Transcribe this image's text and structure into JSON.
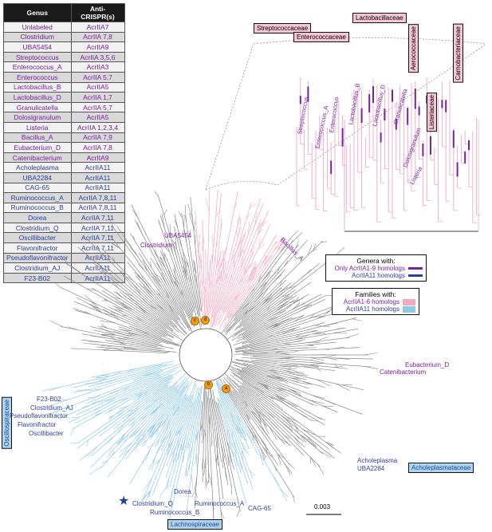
{
  "table": {
    "header_genus": "Genus",
    "header_acr": "Anti-CRISPR(s)",
    "rows": [
      {
        "genus": "Unlabeled",
        "acr": "AcrIIA7",
        "group": "purple"
      },
      {
        "genus": "Clostridium",
        "acr": "AcrIIA 7,8",
        "group": "purple"
      },
      {
        "genus": "UBA5454",
        "acr": "AcrIIA9",
        "group": "purple"
      },
      {
        "genus": "Streptococcus",
        "acr": "AcrIIA 3,5,6",
        "group": "purple"
      },
      {
        "genus": "Enterococcus_A",
        "acr": "AcrIIA3",
        "group": "purple"
      },
      {
        "genus": "Enterococcus",
        "acr": "AcrIIA 5,7",
        "group": "purple"
      },
      {
        "genus": "Lactobacillus_B",
        "acr": "AcrIIA5",
        "group": "purple"
      },
      {
        "genus": "Lactobacillus_D",
        "acr": "AcrIIA 1,7",
        "group": "purple"
      },
      {
        "genus": "Granulicatella",
        "acr": "AcrIIA 5,7",
        "group": "purple"
      },
      {
        "genus": "Dolosigranulum",
        "acr": "AcrIIA5",
        "group": "purple"
      },
      {
        "genus": "Listeria",
        "acr": "AcrIIA 1,2,3,4",
        "group": "purple"
      },
      {
        "genus": "Bacillus_A",
        "acr": "AcrIIA 7,9",
        "group": "purple"
      },
      {
        "genus": "Eubacterium_D",
        "acr": "AcrIIA 7,8",
        "group": "purple"
      },
      {
        "genus": "Catenibacterium",
        "acr": "AcrIIA9",
        "group": "purple"
      },
      {
        "genus": "Acholeplasma",
        "acr": "AcrIIA11",
        "group": "blue"
      },
      {
        "genus": "UBA2284",
        "acr": "AcrIIA11",
        "group": "blue"
      },
      {
        "genus": "CAG-65",
        "acr": "AcrIIA11",
        "group": "blue"
      },
      {
        "genus": "Ruminococcus_A",
        "acr": "AcrIIA 7,8,11",
        "group": "blue"
      },
      {
        "genus": "Ruminococcus_B",
        "acr": "AcrIIA 7,8,11",
        "group": "blue"
      },
      {
        "genus": "Dorea",
        "acr": "AcrIIA 7,11",
        "group": "blue"
      },
      {
        "genus": "Clostridium_Q",
        "acr": "AcrIIA 7,11",
        "group": "blue"
      },
      {
        "genus": "Oscillibacter",
        "acr": "AcrIIA 7,11",
        "group": "blue"
      },
      {
        "genus": "Flavonifractor",
        "acr": "AcrIIA 7,11",
        "group": "blue"
      },
      {
        "genus": "Pseudoflavonifractor",
        "acr": "AcrIIA11",
        "group": "blue"
      },
      {
        "genus": "Clostridium_AJ",
        "acr": "AcrIIA11",
        "group": "blue"
      },
      {
        "genus": "F23-B02",
        "acr": "AcrIIA11",
        "group": "blue"
      }
    ]
  },
  "families": {
    "streptococcaceae": "Streptococcaceae",
    "enterococcaceae": "Enterococcaceae",
    "lactobacillaceae": "Lactobacillaceae",
    "aerococcaceae": "Aerococcaceae",
    "carnobacteriaceae": "Carnobacteriaceae",
    "listeriaceae": "Listeriaceae",
    "oscillospiraceae": "Oscillospiraceae",
    "lachnospiraceae": "Lachnospiraceae",
    "acholeplasmataceae": "Acholeplasmataceae"
  },
  "inset_labels": {
    "streptococcus": "Streptococcus",
    "enterococcus_a": "Enterococcus_A",
    "enterococcus": "Enterococcus",
    "lactobacillus_b": "Lactobacillus_B",
    "lactobacillus_d": "Lactobacillus_D",
    "granulicatella": "Granulicatella",
    "dolosigranulum": "Dolosigranulum",
    "listeria": "Listeria"
  },
  "tree_labels": {
    "uba5454": "UBA5454",
    "clostridium": "Clostridium",
    "bacillus_a": "Bacillus_A",
    "eubacterium_d": "Eubacterium_D",
    "catenibacterium": "Catenibacterium",
    "f23_b02": "F23-B02",
    "clostridium_aj": "Clostridium_AJ",
    "pseudoflavonifractor": "Pseudoflavonifractor",
    "flavonifractor": "Flavonifractor",
    "oscillibacter": "Oscillibacter",
    "acholeplasma": "Acholeplasma",
    "uba2284": "UBA2284",
    "dorea": "Dorea",
    "ruminococcus_a": "Ruminococcus_A",
    "cag_65": "CAG-65",
    "ruminococcus_b": "Ruminococcus_B",
    "clostridium_q": "Clostridium_Q"
  },
  "legend_genera": {
    "title": "Genera with:",
    "item1": "Only AcrIIA1-9 homologs",
    "item2": "AcrIIA11 homologs",
    "color1": "#7b1fa2",
    "color2": "#2e3f9e"
  },
  "legend_families": {
    "title": "Families with:",
    "item1": "AcrIIA1-6 homologs",
    "item2": "AcrIIA11 homologs",
    "color1": "#f4a7c0",
    "color2": "#8fc9ea"
  },
  "nodes": {
    "a": "a",
    "b": "b",
    "c": "c",
    "d": "d"
  },
  "scale_bar": "0.003",
  "colors": {
    "purple": "#7b1fa2",
    "blue": "#2e3f9e",
    "pink": "#f4a7c0",
    "lightblue": "#8fc9ea",
    "gray": "#8a8a8a"
  }
}
